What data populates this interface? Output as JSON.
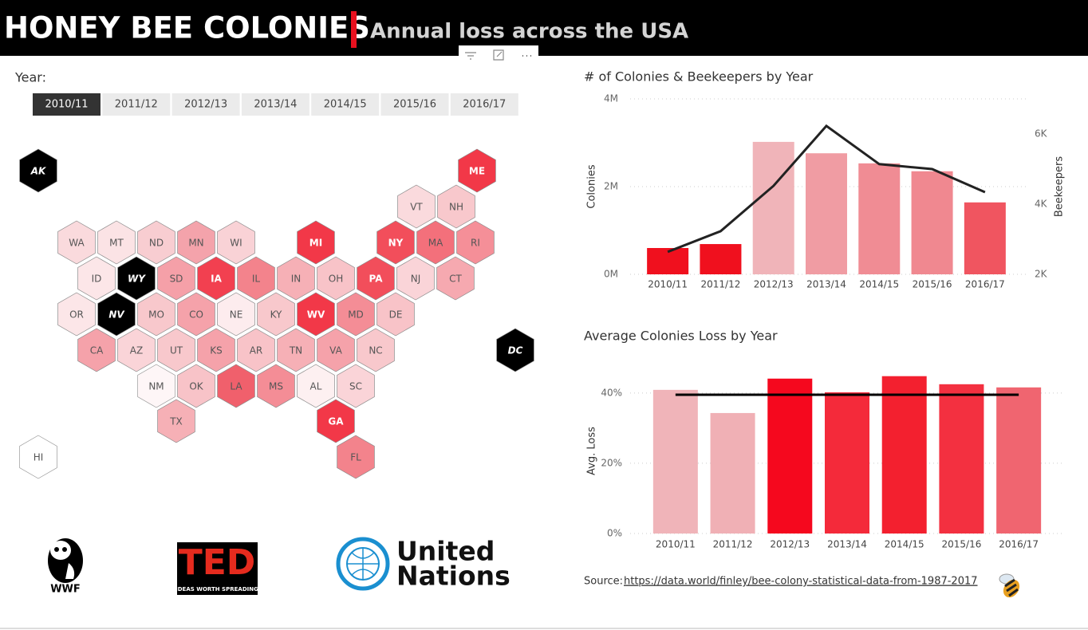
{
  "header": {
    "title": "HONEY BEE COLONIES",
    "subtitle": "Annual loss across the USA"
  },
  "slicer": {
    "label": "Year:",
    "options": [
      "2010/11",
      "2011/12",
      "2012/13",
      "2013/14",
      "2014/15",
      "2015/16",
      "2016/17"
    ],
    "selected": 0
  },
  "map": {
    "states": [
      {
        "label": "AK",
        "color": "#000000"
      },
      {
        "label": "ME",
        "color": "#f23848"
      },
      {
        "label": "VT",
        "color": "#fadadd"
      },
      {
        "label": "NH",
        "color": "#f8c8cc"
      },
      {
        "label": "WA",
        "color": "#fadadd"
      },
      {
        "label": "MT",
        "color": "#fbe3e5"
      },
      {
        "label": "ND",
        "color": "#f8cdd1"
      },
      {
        "label": "MN",
        "color": "#f4a3ab"
      },
      {
        "label": "WI",
        "color": "#f9d2d6"
      },
      {
        "label": "MI",
        "color": "#f23848"
      },
      {
        "label": "NY",
        "color": "#f24e5b"
      },
      {
        "label": "MA",
        "color": "#f3707b"
      },
      {
        "label": "RI",
        "color": "#f58f98"
      },
      {
        "label": "ID",
        "color": "#fce6e8"
      },
      {
        "label": "WY",
        "color": "#000000"
      },
      {
        "label": "SD",
        "color": "#f5a0a8"
      },
      {
        "label": "IA",
        "color": "#f24050"
      },
      {
        "label": "IL",
        "color": "#f3838c"
      },
      {
        "label": "IN",
        "color": "#f6b0b6"
      },
      {
        "label": "OH",
        "color": "#f8c3c8"
      },
      {
        "label": "PA",
        "color": "#f24e5b"
      },
      {
        "label": "NJ",
        "color": "#fad4d8"
      },
      {
        "label": "CT",
        "color": "#f6a9b0"
      },
      {
        "label": "OR",
        "color": "#fce6e8"
      },
      {
        "label": "NV",
        "color": "#000000"
      },
      {
        "label": "MO",
        "color": "#f8c8cc"
      },
      {
        "label": "CO",
        "color": "#f5a2aa"
      },
      {
        "label": "NE",
        "color": "#fdecee"
      },
      {
        "label": "KY",
        "color": "#f8c8cc"
      },
      {
        "label": "WV",
        "color": "#f23848"
      },
      {
        "label": "MD",
        "color": "#f48d96"
      },
      {
        "label": "DE",
        "color": "#f8c3c8"
      },
      {
        "label": "CA",
        "color": "#f5a2aa"
      },
      {
        "label": "AZ",
        "color": "#fad4d8"
      },
      {
        "label": "UT",
        "color": "#f8c8cc"
      },
      {
        "label": "KS",
        "color": "#f5a2aa"
      },
      {
        "label": "AR",
        "color": "#f8c3c8"
      },
      {
        "label": "TN",
        "color": "#f6b0b6"
      },
      {
        "label": "VA",
        "color": "#f5a2aa"
      },
      {
        "label": "NC",
        "color": "#f8c8cc"
      },
      {
        "label": "DC",
        "color": "#000000"
      },
      {
        "label": "NM",
        "color": "#fef6f7"
      },
      {
        "label": "OK",
        "color": "#f8c3c8"
      },
      {
        "label": "LA",
        "color": "#f0606c"
      },
      {
        "label": "MS",
        "color": "#f48d96"
      },
      {
        "label": "AL",
        "color": "#fdf0f1"
      },
      {
        "label": "SC",
        "color": "#fad4d8"
      },
      {
        "label": "TX",
        "color": "#f6b0b6"
      },
      {
        "label": "GA",
        "color": "#f23848"
      },
      {
        "label": "HI",
        "color": "#ffffff"
      },
      {
        "label": "FL",
        "color": "#f3838c"
      }
    ]
  },
  "chart_data": [
    {
      "type": "bar",
      "title": "# of Colonies & Beekeepers by Year",
      "categories": [
        "2010/11",
        "2011/12",
        "2012/13",
        "2013/14",
        "2014/15",
        "2015/16",
        "2016/17"
      ],
      "series": [
        {
          "name": "Colonies",
          "colors": [
            "#f0101e",
            "#f0101e",
            "#f0b4b9",
            "#f09ca3",
            "#f08c94",
            "#f08890",
            "#f05560"
          ],
          "values": [
            600000,
            690000,
            3020000,
            2760000,
            2530000,
            2350000,
            1640000
          ]
        },
        {
          "name": "Beekeepers",
          "type": "line",
          "axis": "y2",
          "color": "#222222",
          "values": [
            2640,
            3230,
            4520,
            6230,
            5140,
            5000,
            4340
          ]
        }
      ],
      "ylim": [
        0,
        4000000
      ],
      "yticks": [
        {
          "value": 0,
          "label": "0M"
        },
        {
          "value": 2000000,
          "label": "2M"
        },
        {
          "value": 4000000,
          "label": "4M"
        }
      ],
      "y2lim": [
        2000,
        7000
      ],
      "y2ticks": [
        {
          "value": 2000,
          "label": "2K"
        },
        {
          "value": 4000,
          "label": "4K"
        },
        {
          "value": 6000,
          "label": "6K"
        }
      ],
      "grid": true
    },
    {
      "type": "bar",
      "title": "Average Colonies Loss by Year",
      "categories": [
        "2010/11",
        "2011/12",
        "2012/13",
        "2013/14",
        "2014/15",
        "2015/16",
        "2016/17"
      ],
      "series": [
        {
          "name": "Avg. Loss",
          "colors": [
            "#f0b4b9",
            "#f0b0b5",
            "#f5081e",
            "#f42a3a",
            "#f3202f",
            "#f33040",
            "#f06570"
          ],
          "values": [
            40.9,
            34.3,
            44.1,
            40.2,
            44.8,
            42.5,
            41.6
          ]
        }
      ],
      "reference_line": 39.5,
      "ylim": [
        0,
        47
      ],
      "yticks": [
        {
          "value": 0,
          "label": "0%"
        },
        {
          "value": 20,
          "label": "20%"
        },
        {
          "value": 40,
          "label": "40%"
        }
      ],
      "grid": true
    }
  ],
  "logos": {
    "wwf": "WWF",
    "ted": "TED",
    "ted_tagline": "IDEAS WORTH SPREADING",
    "un_line1": "United",
    "un_line2": "Nations"
  },
  "source": {
    "label": "Source:",
    "link": "https://data.world/finley/bee-colony-statistical-data-from-1987-2017"
  }
}
